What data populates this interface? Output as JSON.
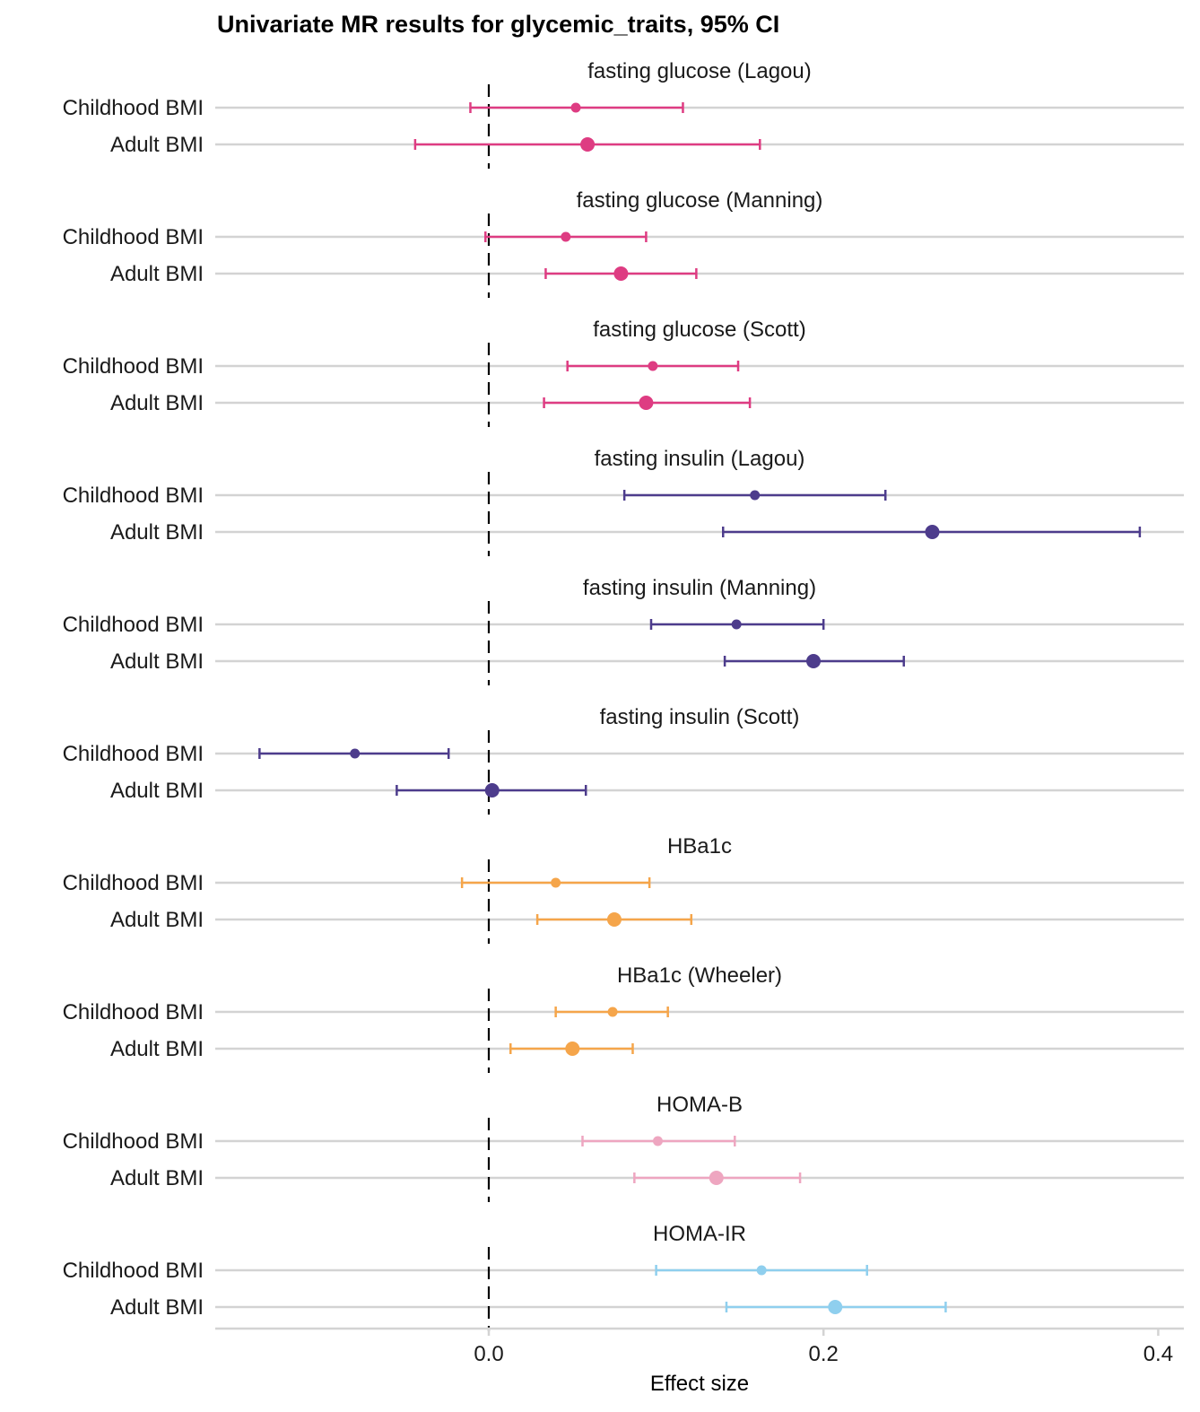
{
  "chart_data": {
    "type": "forest",
    "title": "Univariate MR results for glycemic_traits, 95% CI",
    "xlabel": "Effect size",
    "ylabel": "",
    "xlim": [
      -0.164,
      0.415
    ],
    "xticks": [
      0.0,
      0.2,
      0.4
    ],
    "xtick_labels": [
      "0.0",
      "0.2",
      "0.4"
    ],
    "reference_line": 0,
    "row_labels": [
      "Childhood BMI",
      "Adult BMI"
    ],
    "grid": "horizontal",
    "panels": [
      {
        "name": "fasting glucose (Lagou)",
        "color": "#DE3C82",
        "rows": [
          {
            "label": "Childhood BMI",
            "estimate": 0.052,
            "lo": -0.011,
            "hi": 0.116
          },
          {
            "label": "Adult BMI",
            "estimate": 0.059,
            "lo": -0.044,
            "hi": 0.162
          }
        ]
      },
      {
        "name": "fasting glucose (Manning)",
        "color": "#DE3C82",
        "rows": [
          {
            "label": "Childhood BMI",
            "estimate": 0.046,
            "lo": -0.002,
            "hi": 0.094
          },
          {
            "label": "Adult BMI",
            "estimate": 0.079,
            "lo": 0.034,
            "hi": 0.124
          }
        ]
      },
      {
        "name": "fasting glucose (Scott)",
        "color": "#DE3C82",
        "rows": [
          {
            "label": "Childhood BMI",
            "estimate": 0.098,
            "lo": 0.047,
            "hi": 0.149
          },
          {
            "label": "Adult BMI",
            "estimate": 0.094,
            "lo": 0.033,
            "hi": 0.156
          }
        ]
      },
      {
        "name": "fasting insulin (Lagou)",
        "color": "#4D3C8C",
        "rows": [
          {
            "label": "Childhood BMI",
            "estimate": 0.159,
            "lo": 0.081,
            "hi": 0.237
          },
          {
            "label": "Adult BMI",
            "estimate": 0.265,
            "lo": 0.14,
            "hi": 0.389
          }
        ]
      },
      {
        "name": "fasting insulin (Manning)",
        "color": "#4D3C8C",
        "rows": [
          {
            "label": "Childhood BMI",
            "estimate": 0.148,
            "lo": 0.097,
            "hi": 0.2
          },
          {
            "label": "Adult BMI",
            "estimate": 0.194,
            "lo": 0.141,
            "hi": 0.248
          }
        ]
      },
      {
        "name": "fasting insulin (Scott)",
        "color": "#4D3C8C",
        "rows": [
          {
            "label": "Childhood BMI",
            "estimate": -0.08,
            "lo": -0.137,
            "hi": -0.024
          },
          {
            "label": "Adult BMI",
            "estimate": 0.002,
            "lo": -0.055,
            "hi": 0.058
          }
        ]
      },
      {
        "name": "HBa1c",
        "color": "#F5A54A",
        "rows": [
          {
            "label": "Childhood BMI",
            "estimate": 0.04,
            "lo": -0.016,
            "hi": 0.096
          },
          {
            "label": "Adult BMI",
            "estimate": 0.075,
            "lo": 0.029,
            "hi": 0.121
          }
        ]
      },
      {
        "name": "HBa1c (Wheeler)",
        "color": "#F5A54A",
        "rows": [
          {
            "label": "Childhood BMI",
            "estimate": 0.074,
            "lo": 0.04,
            "hi": 0.107
          },
          {
            "label": "Adult BMI",
            "estimate": 0.05,
            "lo": 0.013,
            "hi": 0.086
          }
        ]
      },
      {
        "name": "HOMA-B",
        "color": "#EEA6C0",
        "rows": [
          {
            "label": "Childhood BMI",
            "estimate": 0.101,
            "lo": 0.056,
            "hi": 0.147
          },
          {
            "label": "Adult BMI",
            "estimate": 0.136,
            "lo": 0.087,
            "hi": 0.186
          }
        ]
      },
      {
        "name": "HOMA-IR",
        "color": "#8FCFEE",
        "rows": [
          {
            "label": "Childhood BMI",
            "estimate": 0.163,
            "lo": 0.1,
            "hi": 0.226
          },
          {
            "label": "Adult BMI",
            "estimate": 0.207,
            "lo": 0.142,
            "hi": 0.273
          }
        ]
      }
    ]
  }
}
